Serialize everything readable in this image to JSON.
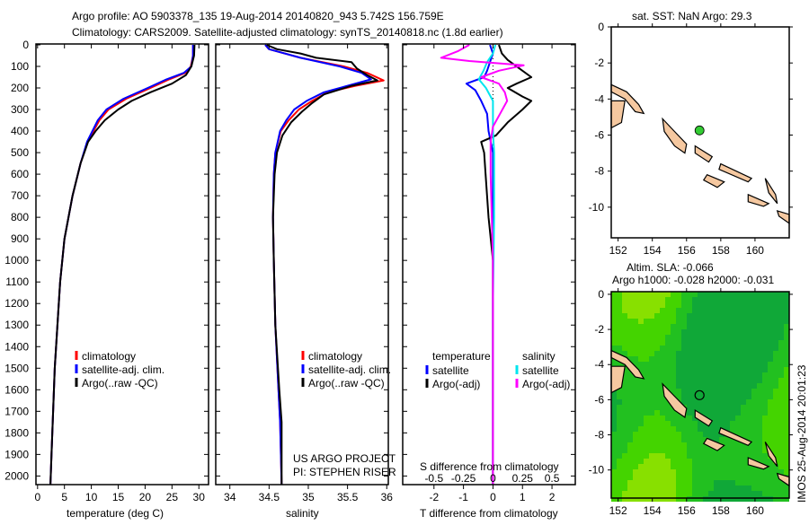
{
  "title": {
    "line1": "Argo profile: AO 5903378_135 19-Aug-2014 20140820_943 5.742S 156.759E",
    "line2": "Climatology: CARS2009. Satellite-adjusted climatology: synTS_20140818.nc (1.8d earlier)"
  },
  "colors": {
    "climatology": "#ff0000",
    "satellite": "#0000ff",
    "argo": "#000000",
    "sal_satellite": "#00e5ee",
    "sal_argo": "#ff00ff",
    "land": "#f5c8a0",
    "argo_dot": "#33cc33"
  },
  "project": {
    "line1": "US ARGO PROJECT",
    "line2": "PI: STEPHEN RISER"
  },
  "timestamp": "IMOS 25-Aug-2014 20:01:23",
  "chart_data": [
    {
      "type": "line",
      "id": "temperature",
      "xlabel": "temperature (deg C)",
      "ylabel": "depth",
      "xlim": [
        -0.3,
        31.8
      ],
      "ylim": [
        -4,
        2040
      ],
      "xticks": [
        0,
        5,
        10,
        15,
        20,
        25,
        30
      ],
      "yticks": [
        0,
        100,
        200,
        300,
        400,
        500,
        600,
        700,
        800,
        900,
        1000,
        1100,
        1200,
        1300,
        1400,
        1500,
        1600,
        1700,
        1800,
        1900,
        2000
      ],
      "legend": [
        "climatology",
        "satellite-adj. clim.",
        "Argo(..raw -QC)"
      ],
      "series": [
        {
          "name": "climatology",
          "color_key": "climatology",
          "depth": [
            0,
            50,
            100,
            130,
            160,
            200,
            250,
            300,
            350,
            450,
            550,
            700,
            900,
            1100,
            1300,
            1500,
            1700,
            1900,
            2040
          ],
          "values": [
            28.9,
            28.9,
            28.5,
            27.5,
            24.5,
            21,
            16.5,
            13.2,
            11.5,
            9.3,
            8,
            6.5,
            5,
            4.2,
            3.7,
            3.2,
            2.9,
            2.6,
            2.4
          ]
        },
        {
          "name": "satellite-adj. clim.",
          "color_key": "satellite",
          "depth": [
            0,
            50,
            100,
            130,
            160,
            200,
            250,
            300,
            350,
            450,
            550,
            700,
            900,
            1100,
            1300,
            1500,
            1700,
            1900,
            2040
          ],
          "values": [
            28.9,
            28.9,
            28.6,
            27.2,
            24,
            20.5,
            16,
            12.8,
            11.2,
            9.2,
            8,
            6.5,
            5,
            4.2,
            3.7,
            3.2,
            2.9,
            2.6,
            2.4
          ]
        },
        {
          "name": "Argo(..raw -QC)",
          "color_key": "argo",
          "depth": [
            0,
            50,
            100,
            140,
            180,
            220,
            260,
            300,
            350,
            400,
            450,
            550,
            700,
            900,
            1100,
            1300,
            1500,
            1700,
            1900,
            2040
          ],
          "values": [
            29.2,
            29.1,
            28.6,
            27.6,
            25,
            21,
            17.5,
            15,
            12.5,
            10.8,
            9.4,
            8,
            6.5,
            5,
            4.2,
            3.7,
            3.2,
            2.9,
            2.6,
            2.4
          ]
        }
      ]
    },
    {
      "type": "line",
      "id": "salinity",
      "xlabel": "salinity",
      "xlim": [
        33.82,
        36.02
      ],
      "ylim": [
        -4,
        2040
      ],
      "xticks": [
        34,
        34.5,
        35,
        35.5,
        36
      ],
      "legend": [
        "climatology",
        "satellite-adj. clim.",
        "Argo(..raw -QC)"
      ],
      "series": [
        {
          "name": "climatology",
          "color_key": "climatology",
          "depth": [
            0,
            20,
            60,
            100,
            130,
            165,
            190,
            220,
            260,
            300,
            350,
            400,
            500,
            600,
            800,
            1000,
            1300,
            1600,
            1750,
            2040
          ],
          "values": [
            34.45,
            34.5,
            34.9,
            35.45,
            35.75,
            35.96,
            35.6,
            35.25,
            35.05,
            34.88,
            34.75,
            34.65,
            34.58,
            34.56,
            34.55,
            34.56,
            34.58,
            34.62,
            34.64,
            34.66
          ]
        },
        {
          "name": "satellite-adj. clim.",
          "color_key": "satellite",
          "depth": [
            0,
            20,
            60,
            100,
            130,
            160,
            190,
            220,
            260,
            300,
            350,
            400,
            500,
            600,
            800,
            1000,
            1300,
            1600,
            1750,
            2040
          ],
          "values": [
            34.45,
            34.5,
            34.9,
            35.4,
            35.68,
            35.8,
            35.5,
            35.2,
            34.98,
            34.82,
            34.72,
            34.64,
            34.58,
            34.56,
            34.55,
            34.56,
            34.58,
            34.62,
            34.64,
            34.66
          ]
        },
        {
          "name": "Argo(..raw -QC)",
          "color_key": "argo",
          "depth": [
            0,
            20,
            40,
            60,
            80,
            110,
            140,
            165,
            190,
            230,
            270,
            310,
            360,
            420,
            500,
            600,
            800,
            1000,
            1300,
            1600,
            1750,
            2040
          ],
          "values": [
            34.47,
            34.6,
            34.9,
            35.1,
            35.55,
            35.62,
            35.75,
            35.88,
            35.55,
            35.2,
            35.05,
            34.92,
            34.78,
            34.67,
            34.6,
            34.57,
            34.55,
            34.56,
            34.58,
            34.63,
            34.66,
            34.66
          ]
        }
      ]
    },
    {
      "type": "line",
      "id": "differences",
      "xlabel": "T difference from climatology",
      "x2label": "S difference from climatology",
      "xlim": [
        -3.06,
        2.79
      ],
      "ylim": [
        -4,
        2040
      ],
      "xticks": [
        -2,
        -1,
        0,
        1,
        2
      ],
      "x2ticks": [
        -0.5,
        -0.25,
        0,
        0.25,
        0.5
      ],
      "legend_titles": [
        "temperature",
        "salinity"
      ],
      "legend": [
        "satellite",
        "Argo(-adj)",
        "satellite",
        "Argo(-adj)"
      ],
      "series": [
        {
          "name": "temperature satellite",
          "color_key": "satellite",
          "units": "T",
          "depth": [
            0,
            40,
            80,
            120,
            150,
            180,
            210,
            260,
            320,
            400,
            500,
            800,
            1200,
            1600,
            2040
          ],
          "values": [
            -0.1,
            0,
            -0.1,
            -0.2,
            -0.3,
            -0.9,
            -0.6,
            -0.4,
            -0.2,
            -0.15,
            0,
            0,
            0,
            0,
            0
          ]
        },
        {
          "name": "temperature Argo(-adj)",
          "color_key": "argo",
          "units": "T",
          "depth": [
            0,
            40,
            70,
            110,
            150,
            180,
            200,
            240,
            260,
            300,
            360,
            420,
            450,
            500,
            600,
            800,
            1000,
            1500,
            2040
          ],
          "values": [
            0.2,
            0.3,
            0.5,
            0.9,
            1.3,
            0.8,
            0.5,
            1.0,
            1.3,
            1.0,
            0.5,
            0.1,
            -0.4,
            -0.3,
            -0.25,
            -0.15,
            0,
            0,
            0
          ]
        },
        {
          "name": "salinity satellite",
          "color_key": "sal_satellite",
          "units": "S",
          "depth": [
            0,
            40,
            80,
            120,
            160,
            200,
            260,
            320,
            400,
            500,
            800,
            1200,
            1600,
            2040
          ],
          "values": [
            0.02,
            0,
            -0.05,
            -0.08,
            -0.12,
            -0.06,
            0,
            0,
            0,
            0.01,
            0.01,
            0,
            0,
            0
          ]
        },
        {
          "name": "salinity Argo(-adj)",
          "color_key": "sal_argo",
          "units": "S",
          "depth": [
            0,
            30,
            60,
            75,
            95,
            120,
            150,
            180,
            220,
            260,
            320,
            380,
            450,
            600,
            1000,
            1500,
            2040
          ],
          "values": [
            -0.2,
            -0.3,
            -0.44,
            -0.2,
            0.26,
            0.05,
            -0.1,
            0.05,
            0.1,
            0.12,
            0.06,
            0,
            -0.02,
            -0.02,
            0,
            0,
            0
          ]
        }
      ]
    },
    {
      "type": "scatter",
      "id": "sst_map",
      "title": "sat. SST: NaN Argo: 29.3",
      "xlim": [
        151.6,
        162
      ],
      "ylim": [
        -11.7,
        0
      ],
      "xticks": [
        152,
        154,
        156,
        158,
        160
      ],
      "yticks": [
        0,
        -2,
        -4,
        -6,
        -8,
        -10
      ],
      "point": {
        "lon": 156.759,
        "lat": -5.742
      }
    },
    {
      "type": "heatmap",
      "id": "sla_map",
      "title": "Altim. SLA: -0.066",
      "subtitle": "Argo h1000: -0.028 h2000: -0.031",
      "xlim": [
        151.6,
        162
      ],
      "ylim": [
        -11.6,
        0.15
      ],
      "xticks": [
        152,
        154,
        156,
        158,
        160
      ],
      "yticks": [
        0,
        -2,
        -4,
        -6,
        -8,
        -10
      ],
      "point": {
        "lon": 156.759,
        "lat": -5.742
      }
    }
  ]
}
